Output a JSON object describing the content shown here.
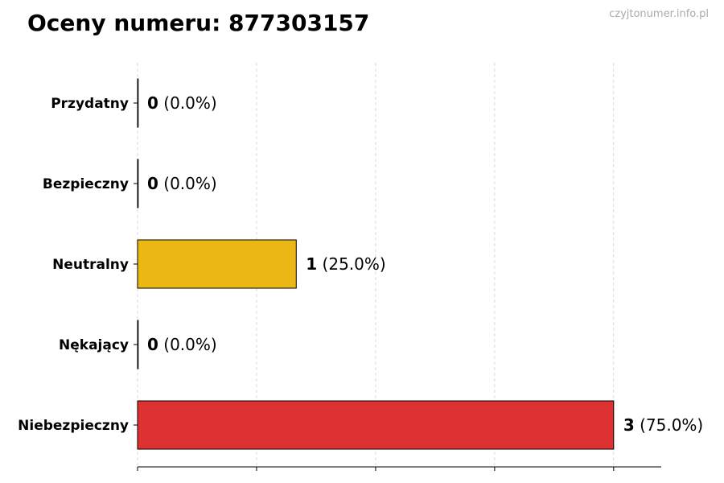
{
  "title": "Oceny numeru: 877303157",
  "watermark": "czyjtonumer.info.pl",
  "chart_data": {
    "type": "bar",
    "orientation": "horizontal",
    "title": "Oceny numeru: 877303157",
    "categories": [
      "Przydatny",
      "Bezpieczny",
      "Neutralny",
      "Nękający",
      "Niebezpieczny"
    ],
    "values": [
      0,
      0,
      1,
      0,
      3
    ],
    "percent_labels": [
      "(0.0%)",
      "(0.0%)",
      "(25.0%)",
      "(0.0%)",
      "(75.0%)"
    ],
    "colors": [
      "#22a34a",
      "#3b82f6",
      "#eab308",
      "#f97316",
      "#dc2626"
    ],
    "xlim": [
      0,
      3.3
    ],
    "grid_x": [
      0,
      0.75,
      1.5,
      2.25,
      3
    ],
    "grid": true,
    "xlabel": "",
    "ylabel": ""
  }
}
